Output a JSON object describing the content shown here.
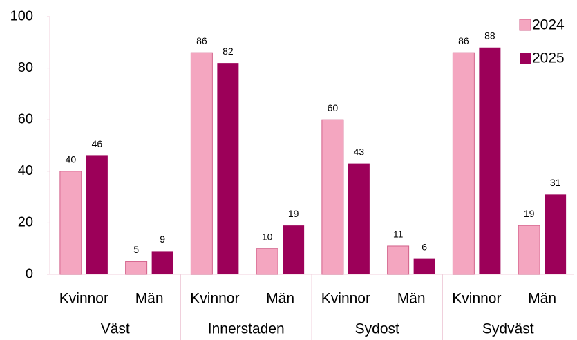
{
  "chart_data": {
    "type": "bar",
    "groups": [
      "Väst",
      "Innerstaden",
      "Sydost",
      "Sydväst"
    ],
    "categories": [
      "Kvinnor",
      "Män",
      "Kvinnor",
      "Män",
      "Kvinnor",
      "Män",
      "Kvinnor",
      "Män"
    ],
    "series": [
      {
        "name": "2024",
        "color": "#f4a6c0",
        "values": [
          40,
          5,
          86,
          10,
          60,
          11,
          86,
          19
        ]
      },
      {
        "name": "2025",
        "color": "#9c0059",
        "values": [
          46,
          9,
          82,
          19,
          43,
          6,
          88,
          31
        ]
      }
    ],
    "ylim": [
      0,
      100
    ],
    "yticks": [
      0,
      20,
      40,
      60,
      80,
      100
    ],
    "grid": false,
    "legend": "top-right"
  }
}
